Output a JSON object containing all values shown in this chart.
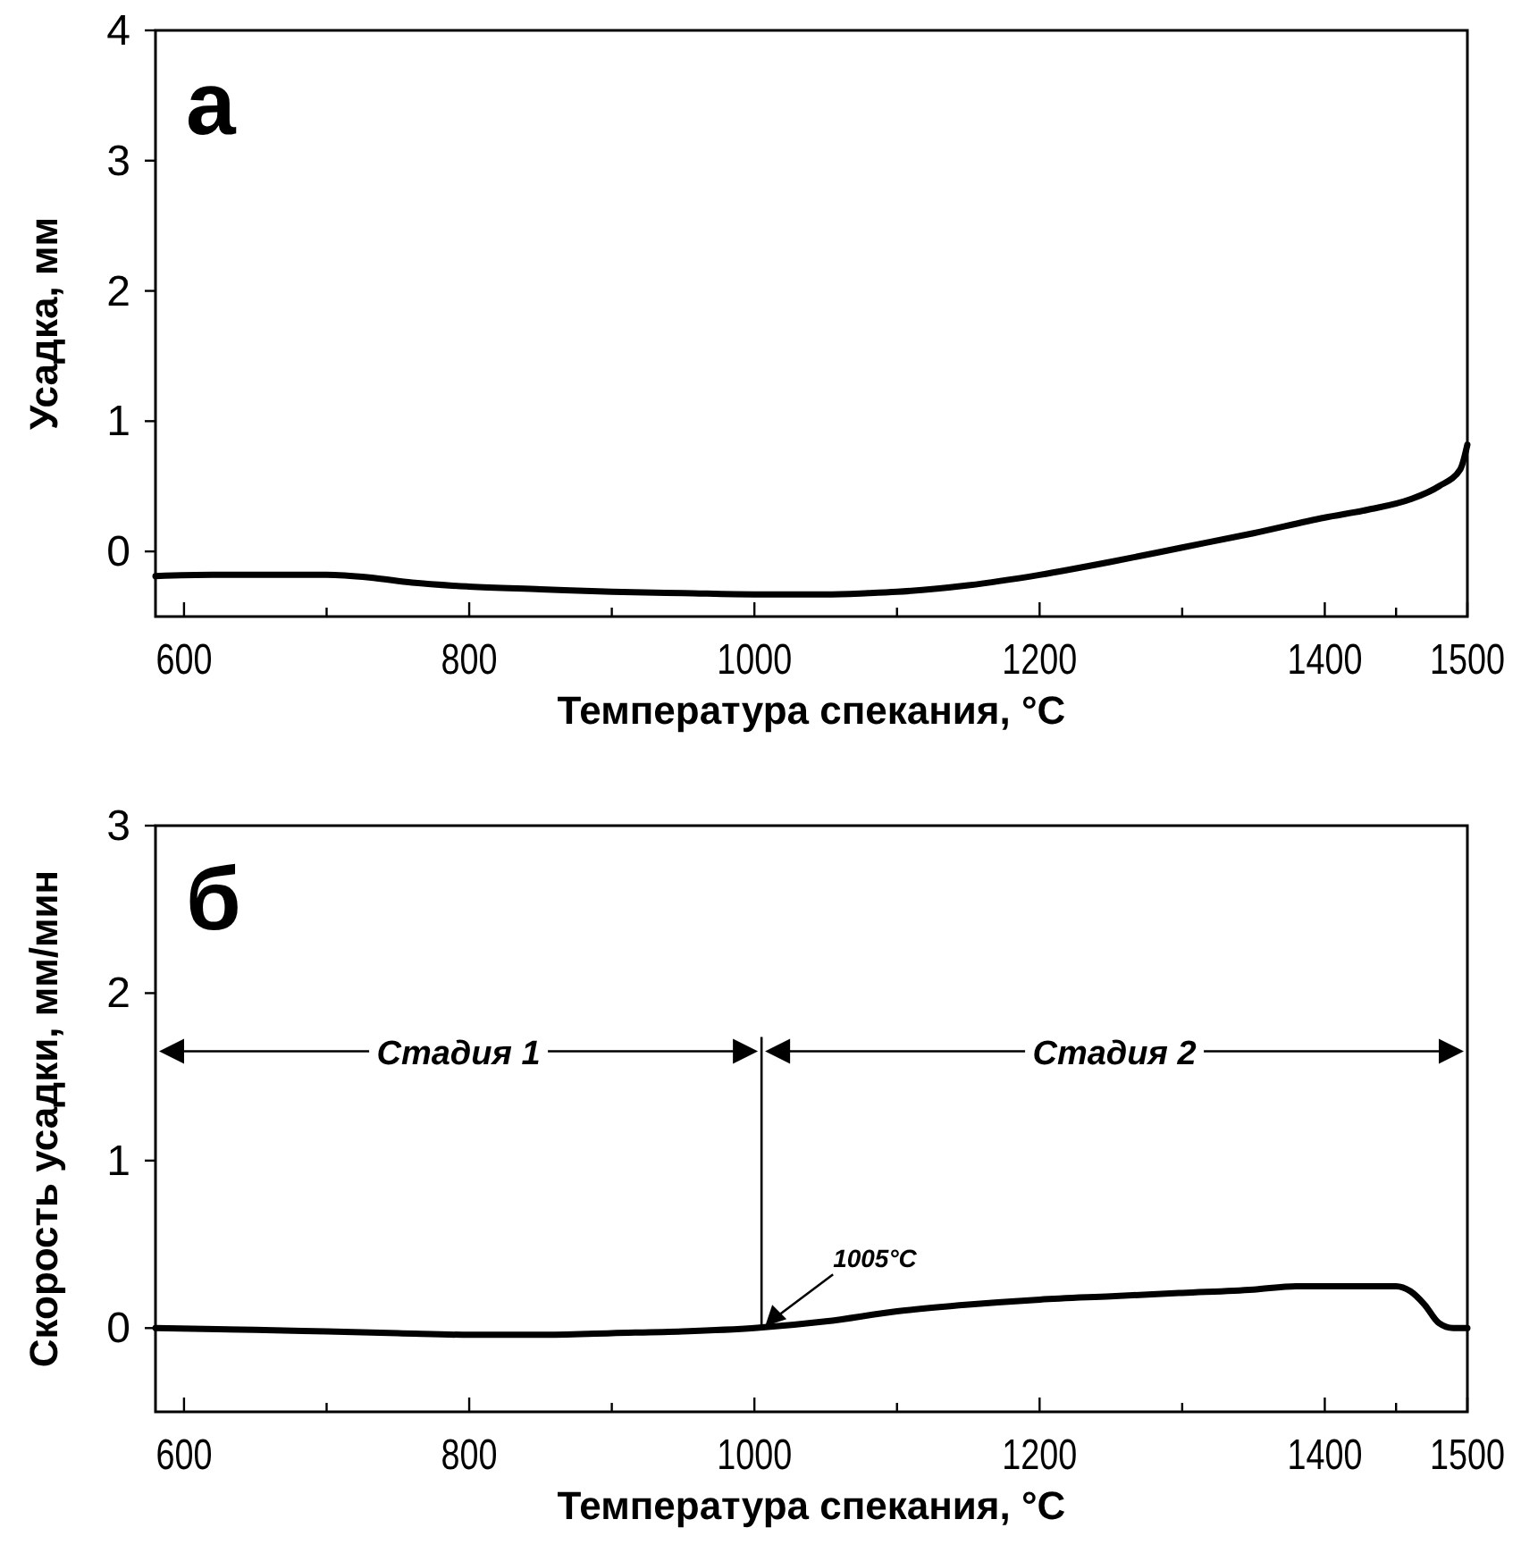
{
  "chart_data": [
    {
      "type": "line",
      "title": "а",
      "xlabel": "Температура спекания, °C",
      "ylabel": "Усадка, мм",
      "x": [
        580,
        620,
        660,
        700,
        730,
        760,
        800,
        850,
        900,
        950,
        1000,
        1050,
        1080,
        1100,
        1150,
        1200,
        1250,
        1300,
        1350,
        1400,
        1430,
        1460,
        1480,
        1495,
        1500
      ],
      "series": [
        {
          "color": "#000000",
          "values": [
            -0.19,
            -0.18,
            -0.18,
            -0.18,
            -0.2,
            -0.24,
            -0.27,
            -0.29,
            -0.31,
            -0.32,
            -0.33,
            -0.33,
            -0.32,
            -0.31,
            -0.26,
            -0.18,
            -0.08,
            0.03,
            0.14,
            0.26,
            0.32,
            0.4,
            0.5,
            0.63,
            0.82
          ]
        }
      ],
      "xlim": [
        580,
        1500
      ],
      "xticks": [
        600,
        {
          "value": 700,
          "label": null
        },
        800,
        {
          "value": 900,
          "label": null
        },
        1000,
        {
          "value": 1100,
          "label": null
        },
        1200,
        {
          "value": 1300,
          "label": null
        },
        1400,
        {
          "value": 1450,
          "label": null
        },
        1500
      ],
      "ylim": [
        -0.5,
        4
      ],
      "yticks": [
        0,
        1,
        2,
        3,
        4
      ],
      "grid": false,
      "marker": "none",
      "line_style": "solid"
    },
    {
      "type": "line",
      "title": "б",
      "xlabel": "Температура спекания, °C",
      "ylabel": "Скорость усадки, мм/мин",
      "x": [
        580,
        650,
        700,
        750,
        800,
        850,
        900,
        950,
        1000,
        1050,
        1100,
        1150,
        1200,
        1250,
        1300,
        1350,
        1380,
        1420,
        1450,
        1460,
        1470,
        1480,
        1490,
        1500
      ],
      "series": [
        {
          "color": "#000000",
          "values": [
            0.0,
            -0.01,
            -0.02,
            -0.03,
            -0.04,
            -0.04,
            -0.03,
            -0.02,
            0.0,
            0.04,
            0.1,
            0.14,
            0.17,
            0.19,
            0.21,
            0.23,
            0.25,
            0.25,
            0.25,
            0.22,
            0.14,
            0.03,
            0.0,
            0.0
          ]
        }
      ],
      "xlim": [
        580,
        1500
      ],
      "xticks": [
        600,
        {
          "value": 700,
          "label": null
        },
        800,
        {
          "value": 900,
          "label": null
        },
        1000,
        {
          "value": 1100,
          "label": null
        },
        1200,
        {
          "value": 1300,
          "label": null
        },
        1400,
        {
          "value": 1450,
          "label": null
        },
        1500
      ],
      "ylim": [
        -0.5,
        3
      ],
      "yticks": [
        0,
        1,
        2,
        3
      ],
      "grid": false,
      "marker": "none",
      "line_style": "solid",
      "ref_lines": [
        {
          "axis": "x",
          "value": 1005,
          "label": "1005°C",
          "color": "#000000"
        }
      ],
      "annotations": [
        "Стадия 1",
        "Стадия 2"
      ]
    }
  ]
}
